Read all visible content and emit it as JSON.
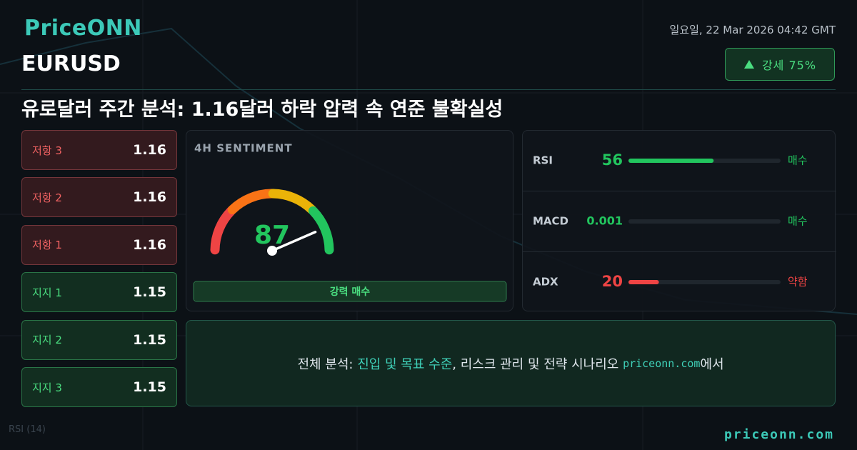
{
  "header": {
    "logo": "PriceONN",
    "date": "일요일, 22 Mar 2026 04:42 GMT",
    "symbol": "EURUSD",
    "trend_badge": "강세 75%",
    "headline": "유로달러 주간 분석: 1.16달러 하락 압력 속 연준 불확실성"
  },
  "levels": [
    {
      "label": "저항 3",
      "value": 1.16,
      "kind": "resistance"
    },
    {
      "label": "저항 2",
      "value": 1.16,
      "kind": "resistance"
    },
    {
      "label": "저항 1",
      "value": 1.16,
      "kind": "resistance"
    },
    {
      "label": "지지 1",
      "value": 1.15,
      "kind": "support"
    },
    {
      "label": "지지 2",
      "value": 1.15,
      "kind": "support"
    },
    {
      "label": "지지 3",
      "value": 1.15,
      "kind": "support"
    }
  ],
  "sentiment": {
    "title": "4H SENTIMENT",
    "value": 87,
    "scale": [
      0,
      100
    ],
    "verdict": "강력 매수"
  },
  "indicators": {
    "scale": [
      0,
      100
    ],
    "rows": [
      {
        "name": "RSI",
        "value": 56,
        "signal": "매수",
        "color": "#22c55e"
      },
      {
        "name": "MACD",
        "value": 0.001,
        "signal": "매수",
        "color": "#22c55e"
      },
      {
        "name": "ADX",
        "value": 20,
        "signal": "약함",
        "color": "#ef4444"
      }
    ]
  },
  "cta": {
    "prefix": "전체 분석: ",
    "highlight": "진입 및 목표 수준",
    "middle": ", 리스크 관리 및 전략 시나리오 ",
    "site": "priceonn.com",
    "suffix": "에서"
  },
  "footer": {
    "site": "priceonn.com",
    "rsi_label": "RSI (14)"
  }
}
